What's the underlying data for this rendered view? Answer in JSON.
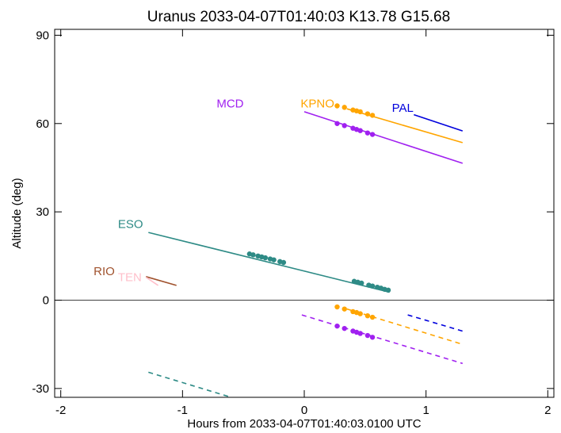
{
  "chart_data": {
    "type": "line",
    "title": "Uranus 2033-04-07T01:40:03  K13.78  G15.68",
    "xlabel": "Hours from 2033-04-07T01:40:03.0100 UTC",
    "ylabel": "Altitude (deg)",
    "xlim": [
      -2.05,
      2.05
    ],
    "ylim": [
      -33,
      92
    ],
    "xticks": [
      -2,
      -1,
      0,
      1,
      2
    ],
    "xtick_labels": [
      "-2",
      "-1",
      "0",
      "1",
      "2"
    ],
    "yticks": [
      -30,
      0,
      30,
      60,
      90
    ],
    "ytick_labels": [
      "-30",
      "0",
      "30",
      "60",
      "90"
    ],
    "zero_line": 0,
    "grid": false,
    "series": [
      {
        "name": "PAL",
        "color": "#0000dd",
        "line": [
          [
            0.9,
            63
          ],
          [
            1.3,
            57.5
          ]
        ],
        "dashed": [
          [
            0.85,
            -5
          ],
          [
            1.3,
            -10.5
          ]
        ],
        "points": []
      },
      {
        "name": "KPNO",
        "color": "#ffa500",
        "line": [
          [
            0.35,
            65
          ],
          [
            1.3,
            53.5
          ]
        ],
        "dashed": [
          [
            0.35,
            -3
          ],
          [
            1.3,
            -15
          ]
        ],
        "points": [
          [
            0.27,
            66
          ],
          [
            0.33,
            65.5
          ],
          [
            0.4,
            64.6
          ],
          [
            0.43,
            64.3
          ],
          [
            0.46,
            64
          ],
          [
            0.52,
            63.3
          ],
          [
            0.56,
            62.8
          ]
        ],
        "points_neg": [
          [
            0.27,
            -2.3
          ],
          [
            0.33,
            -3
          ],
          [
            0.4,
            -3.9
          ],
          [
            0.43,
            -4.2
          ],
          [
            0.46,
            -4.6
          ],
          [
            0.52,
            -5.3
          ],
          [
            0.56,
            -5.8
          ]
        ]
      },
      {
        "name": "MCD",
        "color": "#a020f0",
        "line": [
          [
            0,
            64
          ],
          [
            1.3,
            46.5
          ]
        ],
        "dashed": [
          [
            -0.02,
            -5
          ],
          [
            1.3,
            -21.5
          ]
        ],
        "points": [
          [
            0.27,
            60
          ],
          [
            0.33,
            59.3
          ],
          [
            0.4,
            58.4
          ],
          [
            0.43,
            58
          ],
          [
            0.46,
            57.6
          ],
          [
            0.52,
            56.8
          ],
          [
            0.56,
            56.3
          ]
        ],
        "points_neg": [
          [
            0.27,
            -8.8
          ],
          [
            0.33,
            -9.6
          ],
          [
            0.4,
            -10.5
          ],
          [
            0.43,
            -10.9
          ],
          [
            0.46,
            -11.3
          ],
          [
            0.52,
            -12
          ],
          [
            0.56,
            -12.6
          ]
        ]
      },
      {
        "name": "ESO",
        "color": "#2e8b86",
        "line": [
          [
            -1.28,
            23
          ],
          [
            0.7,
            2.7
          ]
        ],
        "dashed": [
          [
            -1.28,
            -24.5
          ],
          [
            -0.6,
            -33
          ]
        ],
        "points": [
          [
            -0.45,
            15.7
          ],
          [
            -0.42,
            15.4
          ],
          [
            -0.38,
            15
          ],
          [
            -0.35,
            14.7
          ],
          [
            -0.32,
            14.4
          ],
          [
            -0.28,
            14
          ],
          [
            -0.25,
            13.7
          ],
          [
            -0.2,
            13.1
          ],
          [
            -0.17,
            12.8
          ],
          [
            0.41,
            6.4
          ],
          [
            0.44,
            6.1
          ],
          [
            0.47,
            5.8
          ],
          [
            0.53,
            5.1
          ],
          [
            0.56,
            4.8
          ],
          [
            0.6,
            4.4
          ],
          [
            0.63,
            4.1
          ],
          [
            0.66,
            3.7
          ],
          [
            0.69,
            3.4
          ]
        ],
        "points_neg": []
      },
      {
        "name": "RIO",
        "color": "#a0522d",
        "line": [
          [
            -1.3,
            8
          ],
          [
            -1.05,
            5
          ]
        ],
        "dashed": [],
        "points": []
      },
      {
        "name": "TEN",
        "color": "#ffc0cb",
        "line": [
          [
            -1.3,
            7.8
          ],
          [
            -1.2,
            5
          ]
        ],
        "dashed": [],
        "points": []
      }
    ],
    "labels": [
      {
        "text": "PAL",
        "x": 0.72,
        "y": 64
      },
      {
        "text": "KPNO",
        "x": -0.03,
        "y": 65.5
      },
      {
        "text": "MCD",
        "x": -0.72,
        "y": 65.5
      },
      {
        "text": "ESO",
        "x": -1.53,
        "y": 24.5
      },
      {
        "text": "RIO",
        "x": -1.73,
        "y": 8.5
      },
      {
        "text": "TEN",
        "x": -1.53,
        "y": 6.5
      }
    ]
  }
}
